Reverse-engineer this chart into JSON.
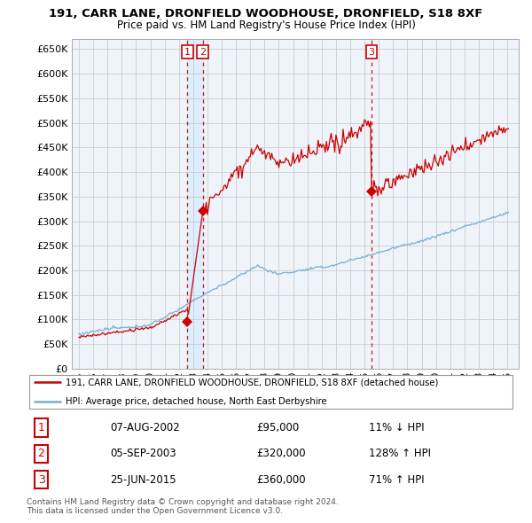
{
  "title1": "191, CARR LANE, DRONFIELD WOODHOUSE, DRONFIELD, S18 8XF",
  "title2": "Price paid vs. HM Land Registry's House Price Index (HPI)",
  "legend_red": "191, CARR LANE, DRONFIELD WOODHOUSE, DRONFIELD, S18 8XF (detached house)",
  "legend_blue": "HPI: Average price, detached house, North East Derbyshire",
  "sale1_year": 2002.59,
  "sale2_year": 2003.67,
  "sale3_year": 2015.49,
  "sale1_price": 95000,
  "sale2_price": 320000,
  "sale3_price": 360000,
  "footnote1": "Contains HM Land Registry data © Crown copyright and database right 2024.",
  "footnote2": "This data is licensed under the Open Government Licence v3.0.",
  "table_data": [
    [
      "1",
      "07-AUG-2002",
      "£95,000",
      "11% ↓ HPI"
    ],
    [
      "2",
      "05-SEP-2003",
      "£320,000",
      "128% ↑ HPI"
    ],
    [
      "3",
      "25-JUN-2015",
      "£360,000",
      "71% ↑ HPI"
    ]
  ],
  "ylim": [
    0,
    670000
  ],
  "ytick_vals": [
    0,
    50000,
    100000,
    150000,
    200000,
    250000,
    300000,
    350000,
    400000,
    450000,
    500000,
    550000,
    600000,
    650000
  ],
  "xlim_start": 1994.5,
  "xlim_end": 2025.8,
  "red_color": "#cc0000",
  "blue_color": "#7aadcc",
  "highlight_color": "#ddeeff",
  "grid_color": "#cccccc",
  "plot_bg": "#eef4fa"
}
